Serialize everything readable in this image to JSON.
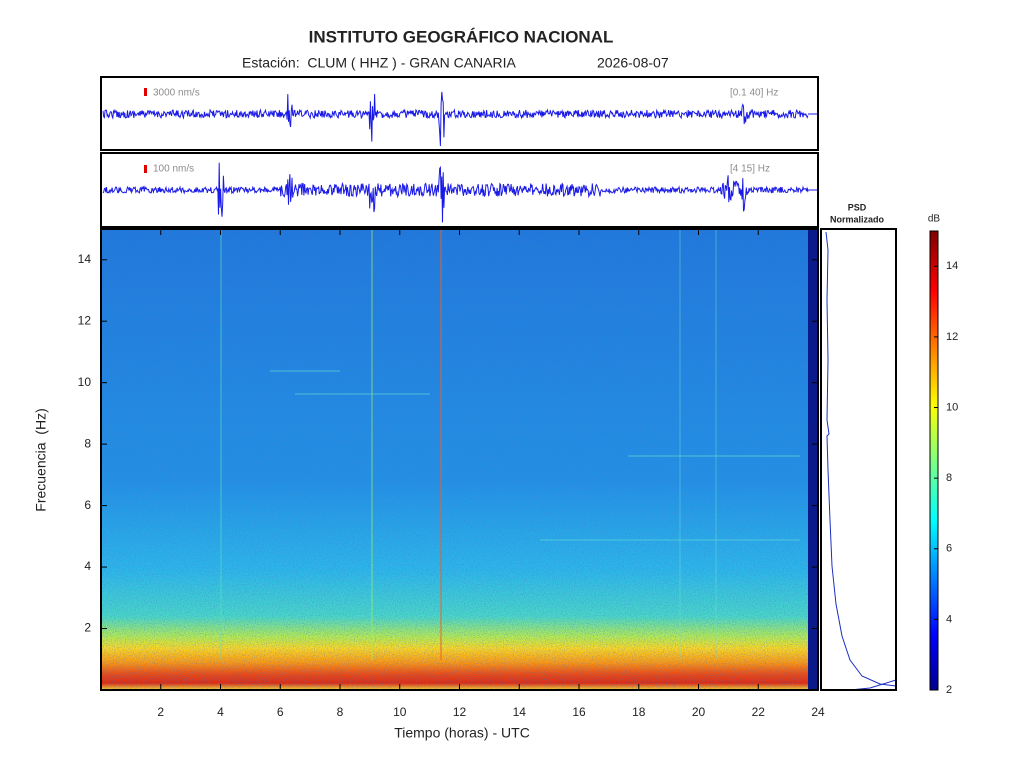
{
  "chart_data": {
    "type": "spectrogram",
    "title": "INSTITUTO GEOGRÁFICO NACIONAL",
    "subtitle": "Estación:  CLUM ( HHZ ) - GRAN CANARIA",
    "date": "2026-08-07",
    "xlabel": "Tiempo (horas) - UTC",
    "ylabel": "Frecuencia  (Hz)",
    "xlim": [
      0,
      24
    ],
    "xticks": [
      2,
      4,
      6,
      8,
      10,
      12,
      14,
      16,
      18,
      20,
      22,
      24
    ],
    "ylim": [
      0,
      15
    ],
    "yticks": [
      2,
      4,
      6,
      8,
      10,
      12,
      14
    ],
    "traces": [
      {
        "scale_label": "3000 nm/s",
        "band_label": "[0.1 40] Hz"
      },
      {
        "scale_label": "100 nm/s",
        "band_label": "[4 15] Hz"
      }
    ],
    "psd_title": [
      "PSD",
      "Normalizado"
    ],
    "colorbar": {
      "label": "dB",
      "lim": [
        2,
        15
      ],
      "ticks": [
        2,
        4,
        6,
        8,
        10,
        12,
        14
      ]
    }
  }
}
